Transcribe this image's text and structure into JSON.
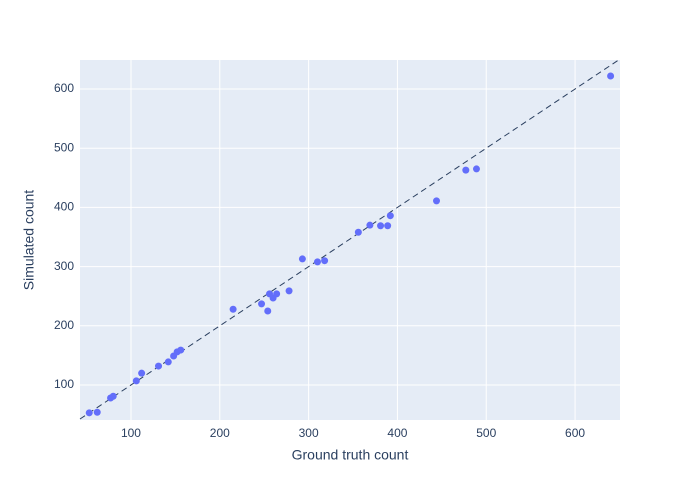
{
  "chart_data": {
    "type": "scatter",
    "x_label": "Ground truth count",
    "y_label": "Simulated count",
    "x": [
      53,
      62,
      77,
      80,
      106,
      112,
      131,
      142,
      148,
      152,
      156,
      215,
      247,
      254,
      256,
      260,
      264,
      278,
      293,
      310,
      318,
      356,
      369,
      381,
      389,
      392,
      444,
      477,
      489,
      640
    ],
    "series": [
      {
        "color": "#636efa",
        "values": [
          53,
          54,
          78,
          81,
          107,
          120,
          132,
          139,
          149,
          156,
          159,
          228,
          237,
          225,
          254,
          247,
          254,
          259,
          313,
          308,
          310,
          358,
          370,
          369,
          369,
          386,
          411,
          463,
          465,
          622
        ]
      }
    ],
    "xlim": [
      42.6,
      650.6
    ],
    "xticks": [
      100,
      200,
      300,
      400,
      500,
      600
    ],
    "ylim": [
      40.9,
      649
    ],
    "yticks": [
      100,
      200,
      300,
      400,
      500,
      600
    ],
    "grid": true,
    "diagonal": true,
    "background": "#e5ecf6"
  }
}
